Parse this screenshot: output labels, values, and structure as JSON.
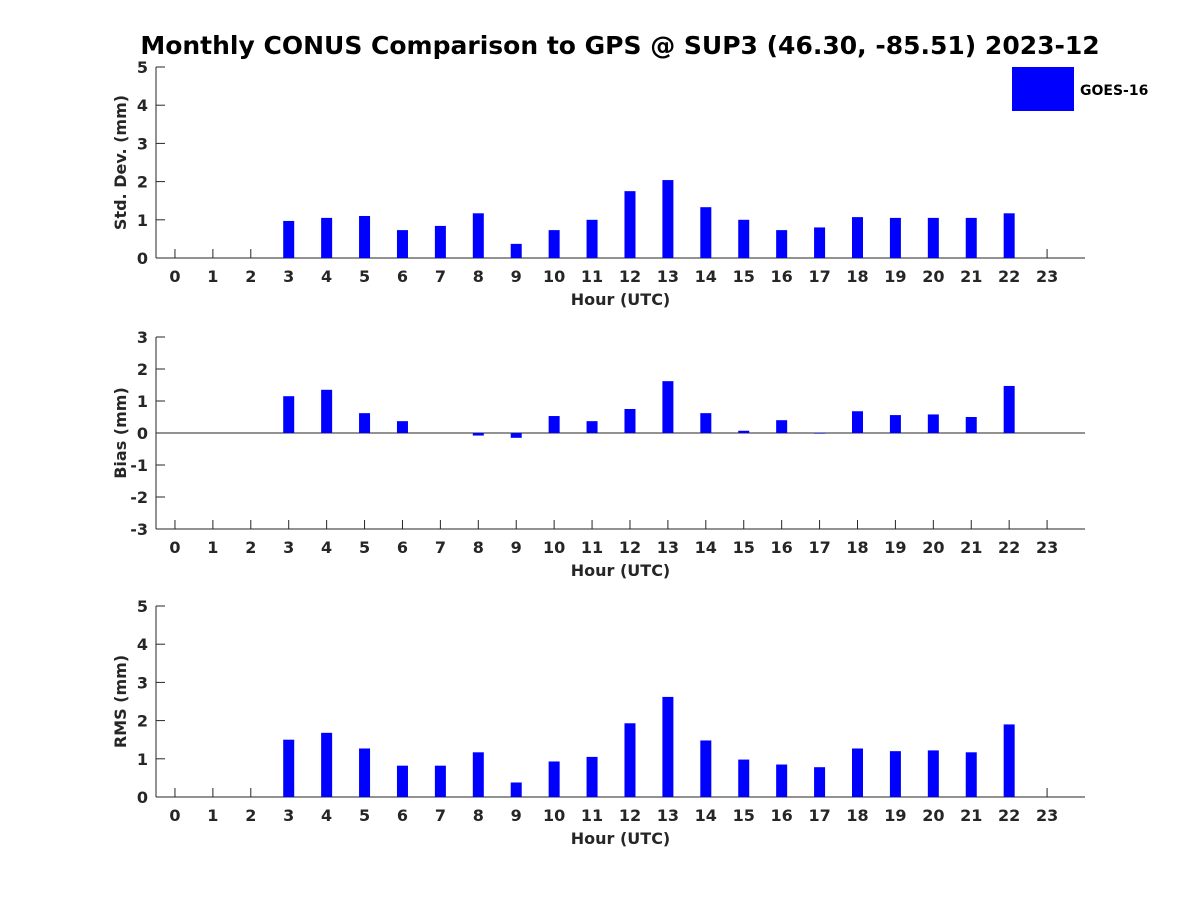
{
  "title": "Monthly CONUS Comparison to GPS @ SUP3 (46.30, -85.51) 2023-12",
  "legend": {
    "label": "GOES-16",
    "color": "#0000ff",
    "position": "top-right"
  },
  "chart_data": [
    {
      "type": "bar",
      "ylabel": "Std. Dev. (mm)",
      "xlabel": "Hour (UTC)",
      "ylim": [
        0,
        5
      ],
      "yticks": [
        0,
        1,
        2,
        3,
        4,
        5
      ],
      "categories": [
        0,
        1,
        2,
        3,
        4,
        5,
        6,
        7,
        8,
        9,
        10,
        11,
        12,
        13,
        14,
        15,
        16,
        17,
        18,
        19,
        20,
        21,
        22,
        23
      ],
      "series": [
        {
          "name": "GOES-16",
          "color": "#0000ff",
          "values": [
            null,
            null,
            null,
            0.97,
            1.05,
            1.1,
            0.73,
            0.84,
            1.17,
            0.37,
            0.73,
            1.0,
            1.75,
            2.04,
            1.33,
            1.0,
            0.73,
            0.8,
            1.07,
            1.05,
            1.05,
            1.05,
            1.17,
            null
          ]
        }
      ]
    },
    {
      "type": "bar",
      "ylabel": "Bias (mm)",
      "xlabel": "Hour (UTC)",
      "ylim": [
        -3,
        3
      ],
      "yticks": [
        -3,
        -2,
        -1,
        0,
        1,
        2,
        3
      ],
      "zero_line": true,
      "categories": [
        0,
        1,
        2,
        3,
        4,
        5,
        6,
        7,
        8,
        9,
        10,
        11,
        12,
        13,
        14,
        15,
        16,
        17,
        18,
        19,
        20,
        21,
        22,
        23
      ],
      "series": [
        {
          "name": "GOES-16",
          "color": "#0000ff",
          "values": [
            null,
            null,
            null,
            1.15,
            1.35,
            0.62,
            0.37,
            0.0,
            -0.08,
            -0.15,
            0.53,
            0.37,
            0.75,
            1.62,
            0.62,
            0.07,
            0.4,
            -0.02,
            0.68,
            0.56,
            0.58,
            0.5,
            1.47,
            null
          ]
        }
      ]
    },
    {
      "type": "bar",
      "ylabel": "RMS (mm)",
      "xlabel": "Hour (UTC)",
      "ylim": [
        0,
        5
      ],
      "yticks": [
        0,
        1,
        2,
        3,
        4,
        5
      ],
      "categories": [
        0,
        1,
        2,
        3,
        4,
        5,
        6,
        7,
        8,
        9,
        10,
        11,
        12,
        13,
        14,
        15,
        16,
        17,
        18,
        19,
        20,
        21,
        22,
        23
      ],
      "series": [
        {
          "name": "GOES-16",
          "color": "#0000ff",
          "values": [
            null,
            null,
            null,
            1.5,
            1.68,
            1.27,
            0.82,
            0.82,
            1.17,
            0.38,
            0.93,
            1.05,
            1.93,
            2.62,
            1.48,
            0.98,
            0.85,
            0.78,
            1.27,
            1.2,
            1.22,
            1.17,
            1.9,
            null
          ]
        }
      ]
    }
  ]
}
